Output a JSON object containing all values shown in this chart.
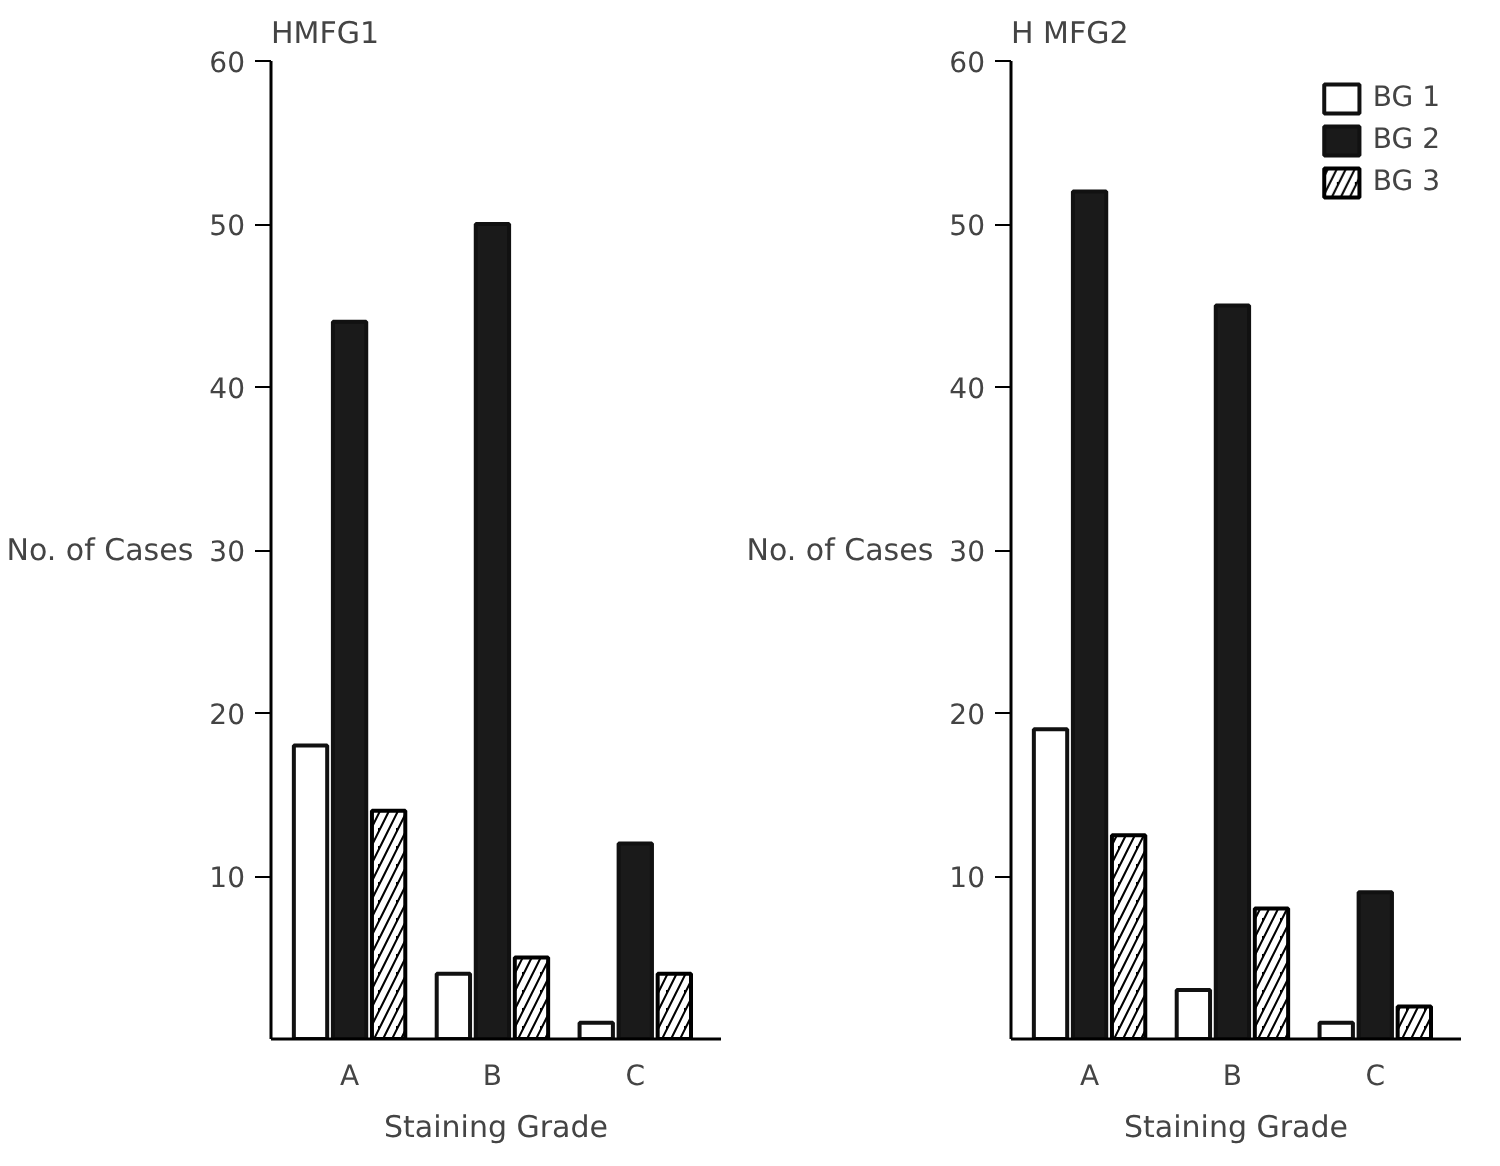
{
  "chart_data": [
    {
      "type": "bar",
      "title": "HMFG1",
      "xlabel": "Staining Grade",
      "ylabel": "No. of Cases",
      "categories": [
        "A",
        "B",
        "C"
      ],
      "series": [
        {
          "color": "#ffffff",
          "values": [
            18,
            4,
            1
          ]
        },
        {
          "color": "#1a1a1a",
          "values": [
            44,
            50,
            12
          ]
        },
        {
          "color": "#000000",
          "values": [
            14,
            5,
            4
          ]
        }
      ],
      "ylim": [
        0,
        60
      ],
      "yticks": [
        10,
        20,
        30,
        40,
        50,
        60
      ],
      "grid": false,
      "legend": false
    },
    {
      "type": "bar",
      "title": "H MFG2",
      "xlabel": "Staining Grade",
      "ylabel": "No. of Cases",
      "categories": [
        "A",
        "B",
        "C"
      ],
      "series": [
        {
          "name": "BG 1",
          "color": "#ffffff",
          "values": [
            19,
            3,
            1
          ]
        },
        {
          "name": "BG 2",
          "color": "#1a1a1a",
          "values": [
            52,
            45,
            9
          ]
        },
        {
          "name": "BG 3",
          "color": "#000000",
          "values": [
            12.5,
            8,
            2
          ]
        }
      ],
      "ylim": [
        0,
        60
      ],
      "yticks": [
        10,
        20,
        30,
        40,
        50,
        60
      ],
      "grid": false,
      "legend": "top right"
    }
  ]
}
